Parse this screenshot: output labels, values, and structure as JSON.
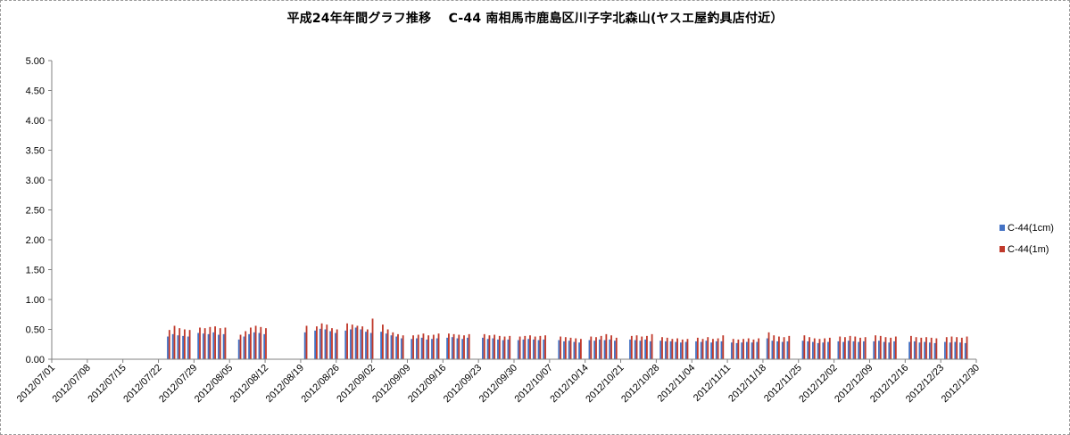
{
  "chart_data": {
    "type": "bar",
    "title": "平成24年年間グラフ推移　 C-44 南相馬市鹿島区川子字北森山(ヤスエ屋釣具店付近）",
    "xlabel": "",
    "ylabel": "",
    "ylim": [
      0,
      5
    ],
    "yticks": [
      "0.00",
      "0.50",
      "1.00",
      "1.50",
      "2.00",
      "2.50",
      "3.00",
      "3.50",
      "4.00",
      "4.50",
      "5.00"
    ],
    "xticks": [
      "2012/07/01",
      "2012/07/08",
      "2012/07/15",
      "2012/07/22",
      "2012/07/29",
      "2012/08/05",
      "2012/08/12",
      "2012/08/19",
      "2012/08/26",
      "2012/09/02",
      "2012/09/09",
      "2012/09/16",
      "2012/09/23",
      "2012/09/30",
      "2012/10/07",
      "2012/10/14",
      "2012/10/21",
      "2012/10/28",
      "2012/11/04",
      "2012/11/11",
      "2012/11/18",
      "2012/11/25",
      "2012/12/02",
      "2012/12/09",
      "2012/12/16",
      "2012/12/23",
      "2012/12/30"
    ],
    "x_start": "2012/07/01",
    "x_end": "2012/12/30",
    "grid": false,
    "legend_position": "right",
    "series": [
      {
        "name": "C-44(1cm)",
        "color": "#4472c4",
        "x": [
          "2012/07/24",
          "2012/07/25",
          "2012/07/26",
          "2012/07/27",
          "2012/07/28",
          "2012/07/30",
          "2012/07/31",
          "2012/08/01",
          "2012/08/02",
          "2012/08/03",
          "2012/08/04",
          "2012/08/07",
          "2012/08/08",
          "2012/08/09",
          "2012/08/10",
          "2012/08/11",
          "2012/08/12",
          "2012/08/20",
          "2012/08/22",
          "2012/08/23",
          "2012/08/24",
          "2012/08/25",
          "2012/08/26",
          "2012/08/28",
          "2012/08/29",
          "2012/08/30",
          "2012/08/31",
          "2012/09/01",
          "2012/09/02",
          "2012/09/04",
          "2012/09/05",
          "2012/09/06",
          "2012/09/07",
          "2012/09/08",
          "2012/09/10",
          "2012/09/11",
          "2012/09/12",
          "2012/09/13",
          "2012/09/14",
          "2012/09/15",
          "2012/09/17",
          "2012/09/18",
          "2012/09/19",
          "2012/09/20",
          "2012/09/21",
          "2012/09/24",
          "2012/09/25",
          "2012/09/26",
          "2012/09/27",
          "2012/09/28",
          "2012/09/29",
          "2012/10/01",
          "2012/10/02",
          "2012/10/03",
          "2012/10/04",
          "2012/10/05",
          "2012/10/06",
          "2012/10/09",
          "2012/10/10",
          "2012/10/11",
          "2012/10/12",
          "2012/10/13",
          "2012/10/15",
          "2012/10/16",
          "2012/10/17",
          "2012/10/18",
          "2012/10/19",
          "2012/10/20",
          "2012/10/23",
          "2012/10/24",
          "2012/10/25",
          "2012/10/26",
          "2012/10/27",
          "2012/10/29",
          "2012/10/30",
          "2012/10/31",
          "2012/11/01",
          "2012/11/02",
          "2012/11/03",
          "2012/11/05",
          "2012/11/06",
          "2012/11/07",
          "2012/11/08",
          "2012/11/09",
          "2012/11/10",
          "2012/11/12",
          "2012/11/13",
          "2012/11/14",
          "2012/11/15",
          "2012/11/16",
          "2012/11/17",
          "2012/11/19",
          "2012/11/20",
          "2012/11/21",
          "2012/11/22",
          "2012/11/23",
          "2012/11/26",
          "2012/11/27",
          "2012/11/28",
          "2012/11/29",
          "2012/11/30",
          "2012/12/01",
          "2012/12/03",
          "2012/12/04",
          "2012/12/05",
          "2012/12/06",
          "2012/12/07",
          "2012/12/08",
          "2012/12/10",
          "2012/12/11",
          "2012/12/12",
          "2012/12/13",
          "2012/12/14",
          "2012/12/17",
          "2012/12/18",
          "2012/12/19",
          "2012/12/20",
          "2012/12/21",
          "2012/12/22",
          "2012/12/24",
          "2012/12/25",
          "2012/12/26",
          "2012/12/27",
          "2012/12/28"
        ],
        "values": [
          0.38,
          0.42,
          0.4,
          0.39,
          0.38,
          0.44,
          0.43,
          0.42,
          0.45,
          0.41,
          0.42,
          0.33,
          0.38,
          0.42,
          0.45,
          0.44,
          0.42,
          0.45,
          0.48,
          0.51,
          0.5,
          0.47,
          0.44,
          0.48,
          0.5,
          0.53,
          0.5,
          0.46,
          0.44,
          0.46,
          0.43,
          0.4,
          0.38,
          0.35,
          0.34,
          0.35,
          0.36,
          0.33,
          0.34,
          0.35,
          0.36,
          0.37,
          0.35,
          0.34,
          0.36,
          0.36,
          0.34,
          0.35,
          0.33,
          0.32,
          0.33,
          0.32,
          0.33,
          0.34,
          0.33,
          0.32,
          0.33,
          0.32,
          0.3,
          0.31,
          0.29,
          0.28,
          0.32,
          0.31,
          0.33,
          0.32,
          0.33,
          0.31,
          0.33,
          0.32,
          0.31,
          0.33,
          0.3,
          0.31,
          0.3,
          0.3,
          0.29,
          0.28,
          0.29,
          0.3,
          0.29,
          0.31,
          0.28,
          0.3,
          0.3,
          0.28,
          0.27,
          0.28,
          0.29,
          0.28,
          0.29,
          0.35,
          0.31,
          0.3,
          0.29,
          0.3,
          0.31,
          0.3,
          0.29,
          0.27,
          0.28,
          0.29,
          0.3,
          0.29,
          0.31,
          0.3,
          0.29,
          0.3,
          0.3,
          0.31,
          0.29,
          0.28,
          0.3,
          0.29,
          0.3,
          0.28,
          0.29,
          0.28,
          0.27,
          0.29,
          0.28,
          0.29,
          0.28,
          0.27
        ]
      },
      {
        "name": "C-44(1m)",
        "color": "#c0392b",
        "x": [
          "2012/07/24",
          "2012/07/25",
          "2012/07/26",
          "2012/07/27",
          "2012/07/28",
          "2012/07/30",
          "2012/07/31",
          "2012/08/01",
          "2012/08/02",
          "2012/08/03",
          "2012/08/04",
          "2012/08/07",
          "2012/08/08",
          "2012/08/09",
          "2012/08/10",
          "2012/08/11",
          "2012/08/12",
          "2012/08/20",
          "2012/08/22",
          "2012/08/23",
          "2012/08/24",
          "2012/08/25",
          "2012/08/26",
          "2012/08/28",
          "2012/08/29",
          "2012/08/30",
          "2012/08/31",
          "2012/09/01",
          "2012/09/02",
          "2012/09/04",
          "2012/09/05",
          "2012/09/06",
          "2012/09/07",
          "2012/09/08",
          "2012/09/10",
          "2012/09/11",
          "2012/09/12",
          "2012/09/13",
          "2012/09/14",
          "2012/09/15",
          "2012/09/17",
          "2012/09/18",
          "2012/09/19",
          "2012/09/20",
          "2012/09/21",
          "2012/09/24",
          "2012/09/25",
          "2012/09/26",
          "2012/09/27",
          "2012/09/28",
          "2012/09/29",
          "2012/10/01",
          "2012/10/02",
          "2012/10/03",
          "2012/10/04",
          "2012/10/05",
          "2012/10/06",
          "2012/10/09",
          "2012/10/10",
          "2012/10/11",
          "2012/10/12",
          "2012/10/13",
          "2012/10/15",
          "2012/10/16",
          "2012/10/17",
          "2012/10/18",
          "2012/10/19",
          "2012/10/20",
          "2012/10/23",
          "2012/10/24",
          "2012/10/25",
          "2012/10/26",
          "2012/10/27",
          "2012/10/29",
          "2012/10/30",
          "2012/10/31",
          "2012/11/01",
          "2012/11/02",
          "2012/11/03",
          "2012/11/05",
          "2012/11/06",
          "2012/11/07",
          "2012/11/08",
          "2012/11/09",
          "2012/11/10",
          "2012/11/12",
          "2012/11/13",
          "2012/11/14",
          "2012/11/15",
          "2012/11/16",
          "2012/11/17",
          "2012/11/19",
          "2012/11/20",
          "2012/11/21",
          "2012/11/22",
          "2012/11/23",
          "2012/11/26",
          "2012/11/27",
          "2012/11/28",
          "2012/11/29",
          "2012/11/30",
          "2012/12/01",
          "2012/12/03",
          "2012/12/04",
          "2012/12/05",
          "2012/12/06",
          "2012/12/07",
          "2012/12/08",
          "2012/12/10",
          "2012/12/11",
          "2012/12/12",
          "2012/12/13",
          "2012/12/14",
          "2012/12/17",
          "2012/12/18",
          "2012/12/19",
          "2012/12/20",
          "2012/12/21",
          "2012/12/22",
          "2012/12/24",
          "2012/12/25",
          "2012/12/26",
          "2012/12/27",
          "2012/12/28"
        ],
        "values": [
          0.49,
          0.56,
          0.52,
          0.5,
          0.49,
          0.53,
          0.52,
          0.54,
          0.55,
          0.52,
          0.53,
          0.41,
          0.47,
          0.53,
          0.56,
          0.54,
          0.52,
          0.56,
          0.55,
          0.6,
          0.58,
          0.52,
          0.5,
          0.6,
          0.58,
          0.56,
          0.55,
          0.5,
          0.68,
          0.58,
          0.5,
          0.45,
          0.42,
          0.4,
          0.4,
          0.41,
          0.43,
          0.4,
          0.41,
          0.43,
          0.43,
          0.42,
          0.41,
          0.4,
          0.42,
          0.42,
          0.4,
          0.41,
          0.39,
          0.38,
          0.39,
          0.38,
          0.39,
          0.4,
          0.38,
          0.39,
          0.4,
          0.38,
          0.37,
          0.36,
          0.35,
          0.34,
          0.38,
          0.37,
          0.39,
          0.42,
          0.4,
          0.36,
          0.39,
          0.4,
          0.38,
          0.39,
          0.42,
          0.37,
          0.36,
          0.34,
          0.35,
          0.33,
          0.34,
          0.36,
          0.34,
          0.37,
          0.34,
          0.35,
          0.4,
          0.34,
          0.33,
          0.34,
          0.35,
          0.33,
          0.35,
          0.45,
          0.4,
          0.38,
          0.37,
          0.39,
          0.4,
          0.37,
          0.35,
          0.34,
          0.35,
          0.36,
          0.38,
          0.37,
          0.39,
          0.38,
          0.36,
          0.37,
          0.4,
          0.39,
          0.37,
          0.36,
          0.38,
          0.39,
          0.37,
          0.36,
          0.37,
          0.36,
          0.35,
          0.37,
          0.38,
          0.37,
          0.36,
          0.38
        ]
      }
    ]
  }
}
